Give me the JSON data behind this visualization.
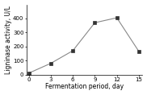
{
  "x": [
    0,
    3,
    6,
    9,
    12,
    15
  ],
  "y": [
    10,
    80,
    170,
    370,
    405,
    165
  ],
  "xlabel": "Fermentation period, day",
  "ylabel": "Ligninase activity, U/L",
  "xlim": [
    -0.3,
    15.5
  ],
  "ylim": [
    0,
    500
  ],
  "xticks": [
    0,
    3,
    6,
    9,
    12,
    15
  ],
  "yticks": [
    0,
    100,
    200,
    300,
    400
  ],
  "line_color": "#888888",
  "marker": "s",
  "marker_facecolor": "#333333",
  "marker_edgecolor": "#333333",
  "marker_size": 3.5,
  "linewidth": 0.8,
  "xlabel_fontsize": 5.5,
  "ylabel_fontsize": 5.5,
  "tick_fontsize": 5.0,
  "background_color": "#ffffff"
}
